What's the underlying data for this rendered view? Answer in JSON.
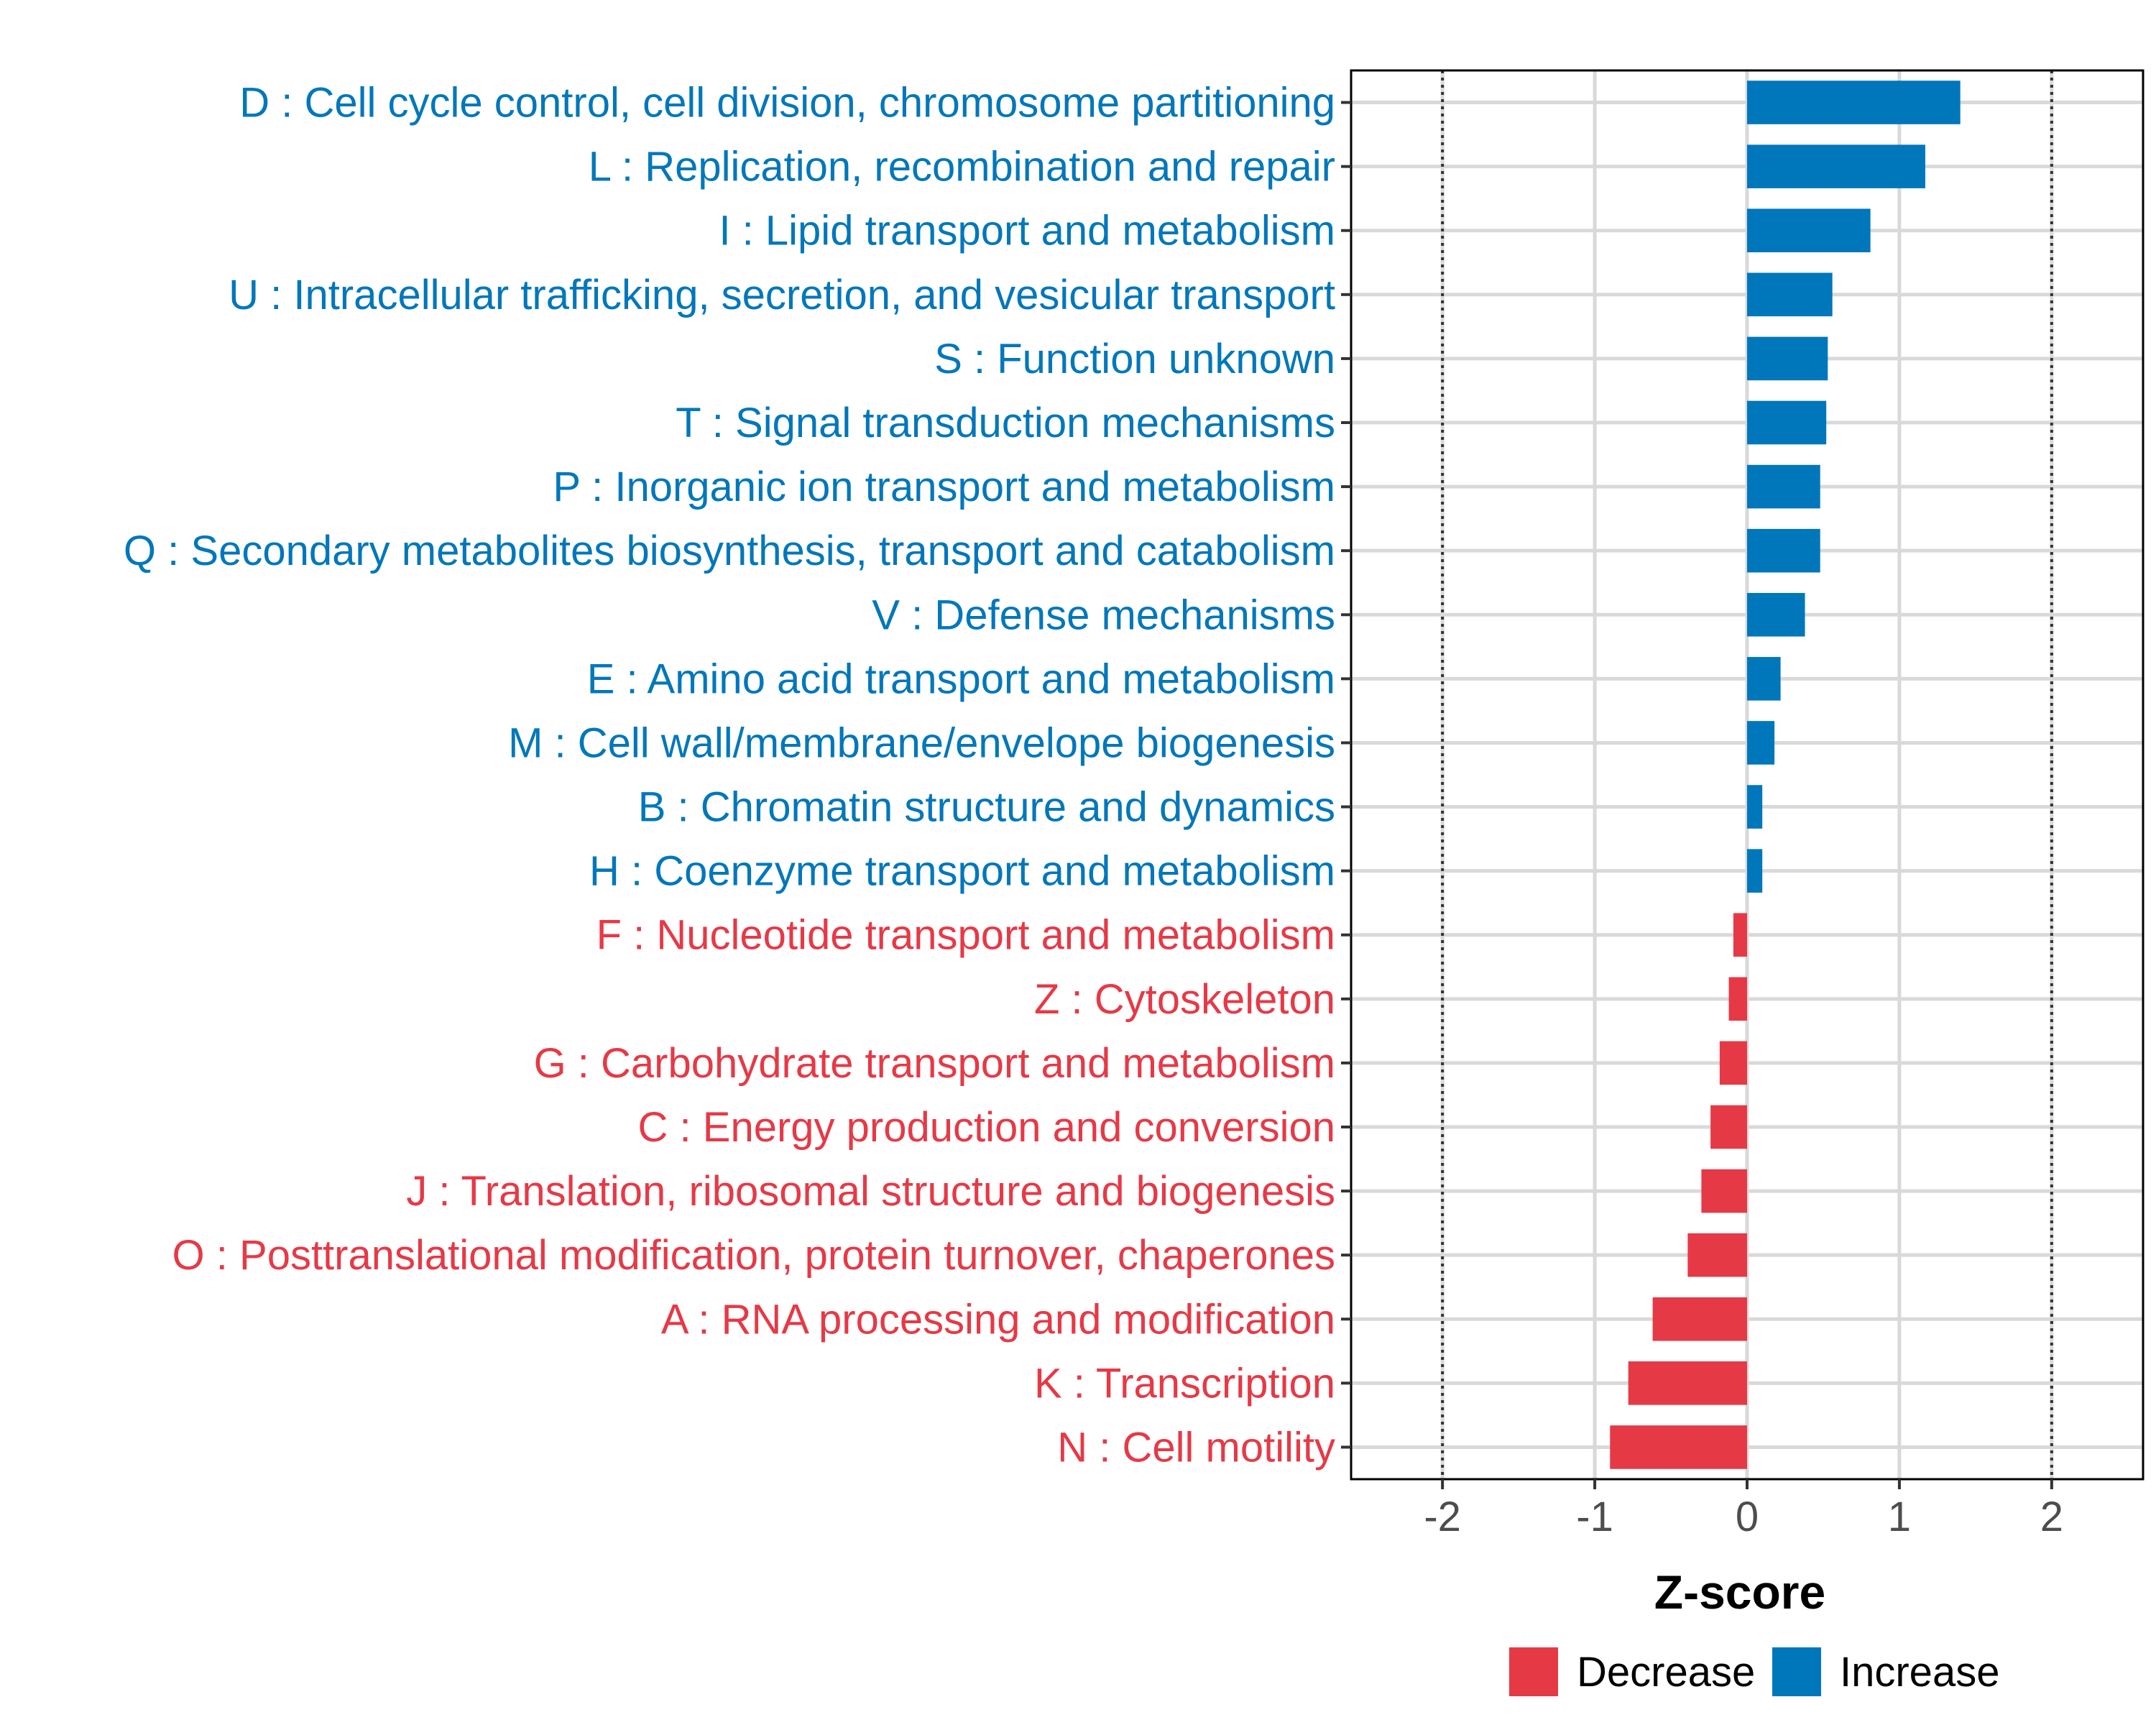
{
  "chart_data": {
    "type": "bar",
    "orientation": "horizontal",
    "xlabel": "Z-score",
    "xlim": [
      -2.6,
      2.6
    ],
    "xticks": [
      -2,
      -1,
      0,
      1,
      2
    ],
    "xtick_labels": [
      "-2",
      "-1",
      "0",
      "1",
      "2"
    ],
    "reference_lines": [
      -2,
      2
    ],
    "grid": true,
    "colors": {
      "Increase": "#0077bb",
      "Decrease": "#e63946",
      "grid": "#d9d9d9"
    },
    "categories": [
      "D : Cell cycle control, cell division, chromosome partitioning",
      "L : Replication, recombination and repair",
      "I : Lipid transport and metabolism",
      "U : Intracellular trafficking, secretion, and vesicular transport",
      "S : Function unknown",
      "T : Signal transduction mechanisms",
      "P : Inorganic ion transport and metabolism",
      "Q : Secondary metabolites biosynthesis, transport and catabolism",
      "V : Defense mechanisms",
      "E : Amino acid transport and metabolism",
      "M : Cell wall/membrane/envelope biogenesis",
      "B : Chromatin structure and dynamics",
      "H : Coenzyme transport and metabolism",
      "F : Nucleotide transport and metabolism",
      "Z : Cytoskeleton",
      "G : Carbohydrate transport and metabolism",
      "C : Energy production and conversion",
      "J : Translation, ribosomal structure and biogenesis",
      "O : Posttranslational modification, protein turnover, chaperones",
      "A : RNA processing and modification",
      "K : Transcription",
      "N : Cell motility"
    ],
    "values": [
      1.4,
      1.17,
      0.81,
      0.56,
      0.53,
      0.52,
      0.48,
      0.48,
      0.38,
      0.22,
      0.18,
      0.1,
      0.1,
      -0.09,
      -0.12,
      -0.18,
      -0.24,
      -0.3,
      -0.39,
      -0.62,
      -0.78,
      -0.9
    ],
    "groups": [
      "Increase",
      "Increase",
      "Increase",
      "Increase",
      "Increase",
      "Increase",
      "Increase",
      "Increase",
      "Increase",
      "Increase",
      "Increase",
      "Increase",
      "Increase",
      "Decrease",
      "Decrease",
      "Decrease",
      "Decrease",
      "Decrease",
      "Decrease",
      "Decrease",
      "Decrease",
      "Decrease"
    ],
    "legend": {
      "position": "bottom",
      "entries": [
        {
          "label": "Decrease",
          "color": "#e63946"
        },
        {
          "label": "Increase",
          "color": "#0077bb"
        }
      ]
    }
  }
}
